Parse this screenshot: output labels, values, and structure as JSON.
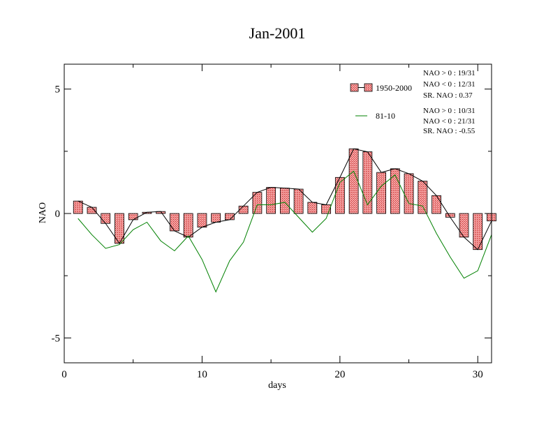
{
  "chart_data": {
    "type": "bar",
    "title": "Jan-2001",
    "xlabel": "days",
    "ylabel": "NAO",
    "xlim": [
      0,
      31
    ],
    "ylim": [
      -6,
      6
    ],
    "x_ticks": [
      0,
      10,
      20,
      30
    ],
    "y_ticks": [
      -5,
      0,
      5
    ],
    "x_tick_labels": [
      "0",
      "10",
      "20",
      "30"
    ],
    "y_tick_labels": [
      "-5",
      "0",
      "5"
    ],
    "legend_position": "top-right",
    "days": [
      1,
      2,
      3,
      4,
      5,
      6,
      7,
      8,
      9,
      10,
      11,
      12,
      13,
      14,
      15,
      16,
      17,
      18,
      19,
      20,
      21,
      22,
      23,
      24,
      25,
      26,
      27,
      28,
      29,
      30,
      31
    ],
    "series": [
      {
        "name": "1950-2000",
        "kind": "bar",
        "color": "#f08080",
        "values": [
          0.5,
          0.25,
          -0.4,
          -1.2,
          -0.25,
          0.05,
          0.08,
          -0.7,
          -0.95,
          -0.55,
          -0.35,
          -0.25,
          0.3,
          0.85,
          1.05,
          1.02,
          0.98,
          0.45,
          0.35,
          1.45,
          2.6,
          2.48,
          1.65,
          1.8,
          1.6,
          1.3,
          0.72,
          -0.15,
          -0.95,
          -1.45,
          -0.3
        ]
      },
      {
        "name": "81-10",
        "kind": "line",
        "color": "#008000",
        "values": [
          -0.2,
          -0.85,
          -1.4,
          -1.25,
          -0.65,
          -0.35,
          -1.1,
          -1.5,
          -0.9,
          -1.85,
          -3.15,
          -1.9,
          -1.15,
          0.35,
          0.35,
          0.45,
          -0.15,
          -0.75,
          -0.2,
          1.25,
          1.7,
          0.35,
          1.1,
          1.55,
          0.4,
          0.3,
          -0.8,
          -1.75,
          -2.6,
          -2.3,
          -0.85
        ]
      }
    ],
    "stats": [
      {
        "label": "NAO > 0 :  19/31"
      },
      {
        "label": "NAO < 0 :  12/31"
      },
      {
        "label": "SR. NAO :  0.37"
      },
      {
        "label": "NAO > 0 :  10/31"
      },
      {
        "label": "NAO < 0 : 21/31"
      },
      {
        "label": "SR. NAO : -0.55"
      }
    ]
  }
}
